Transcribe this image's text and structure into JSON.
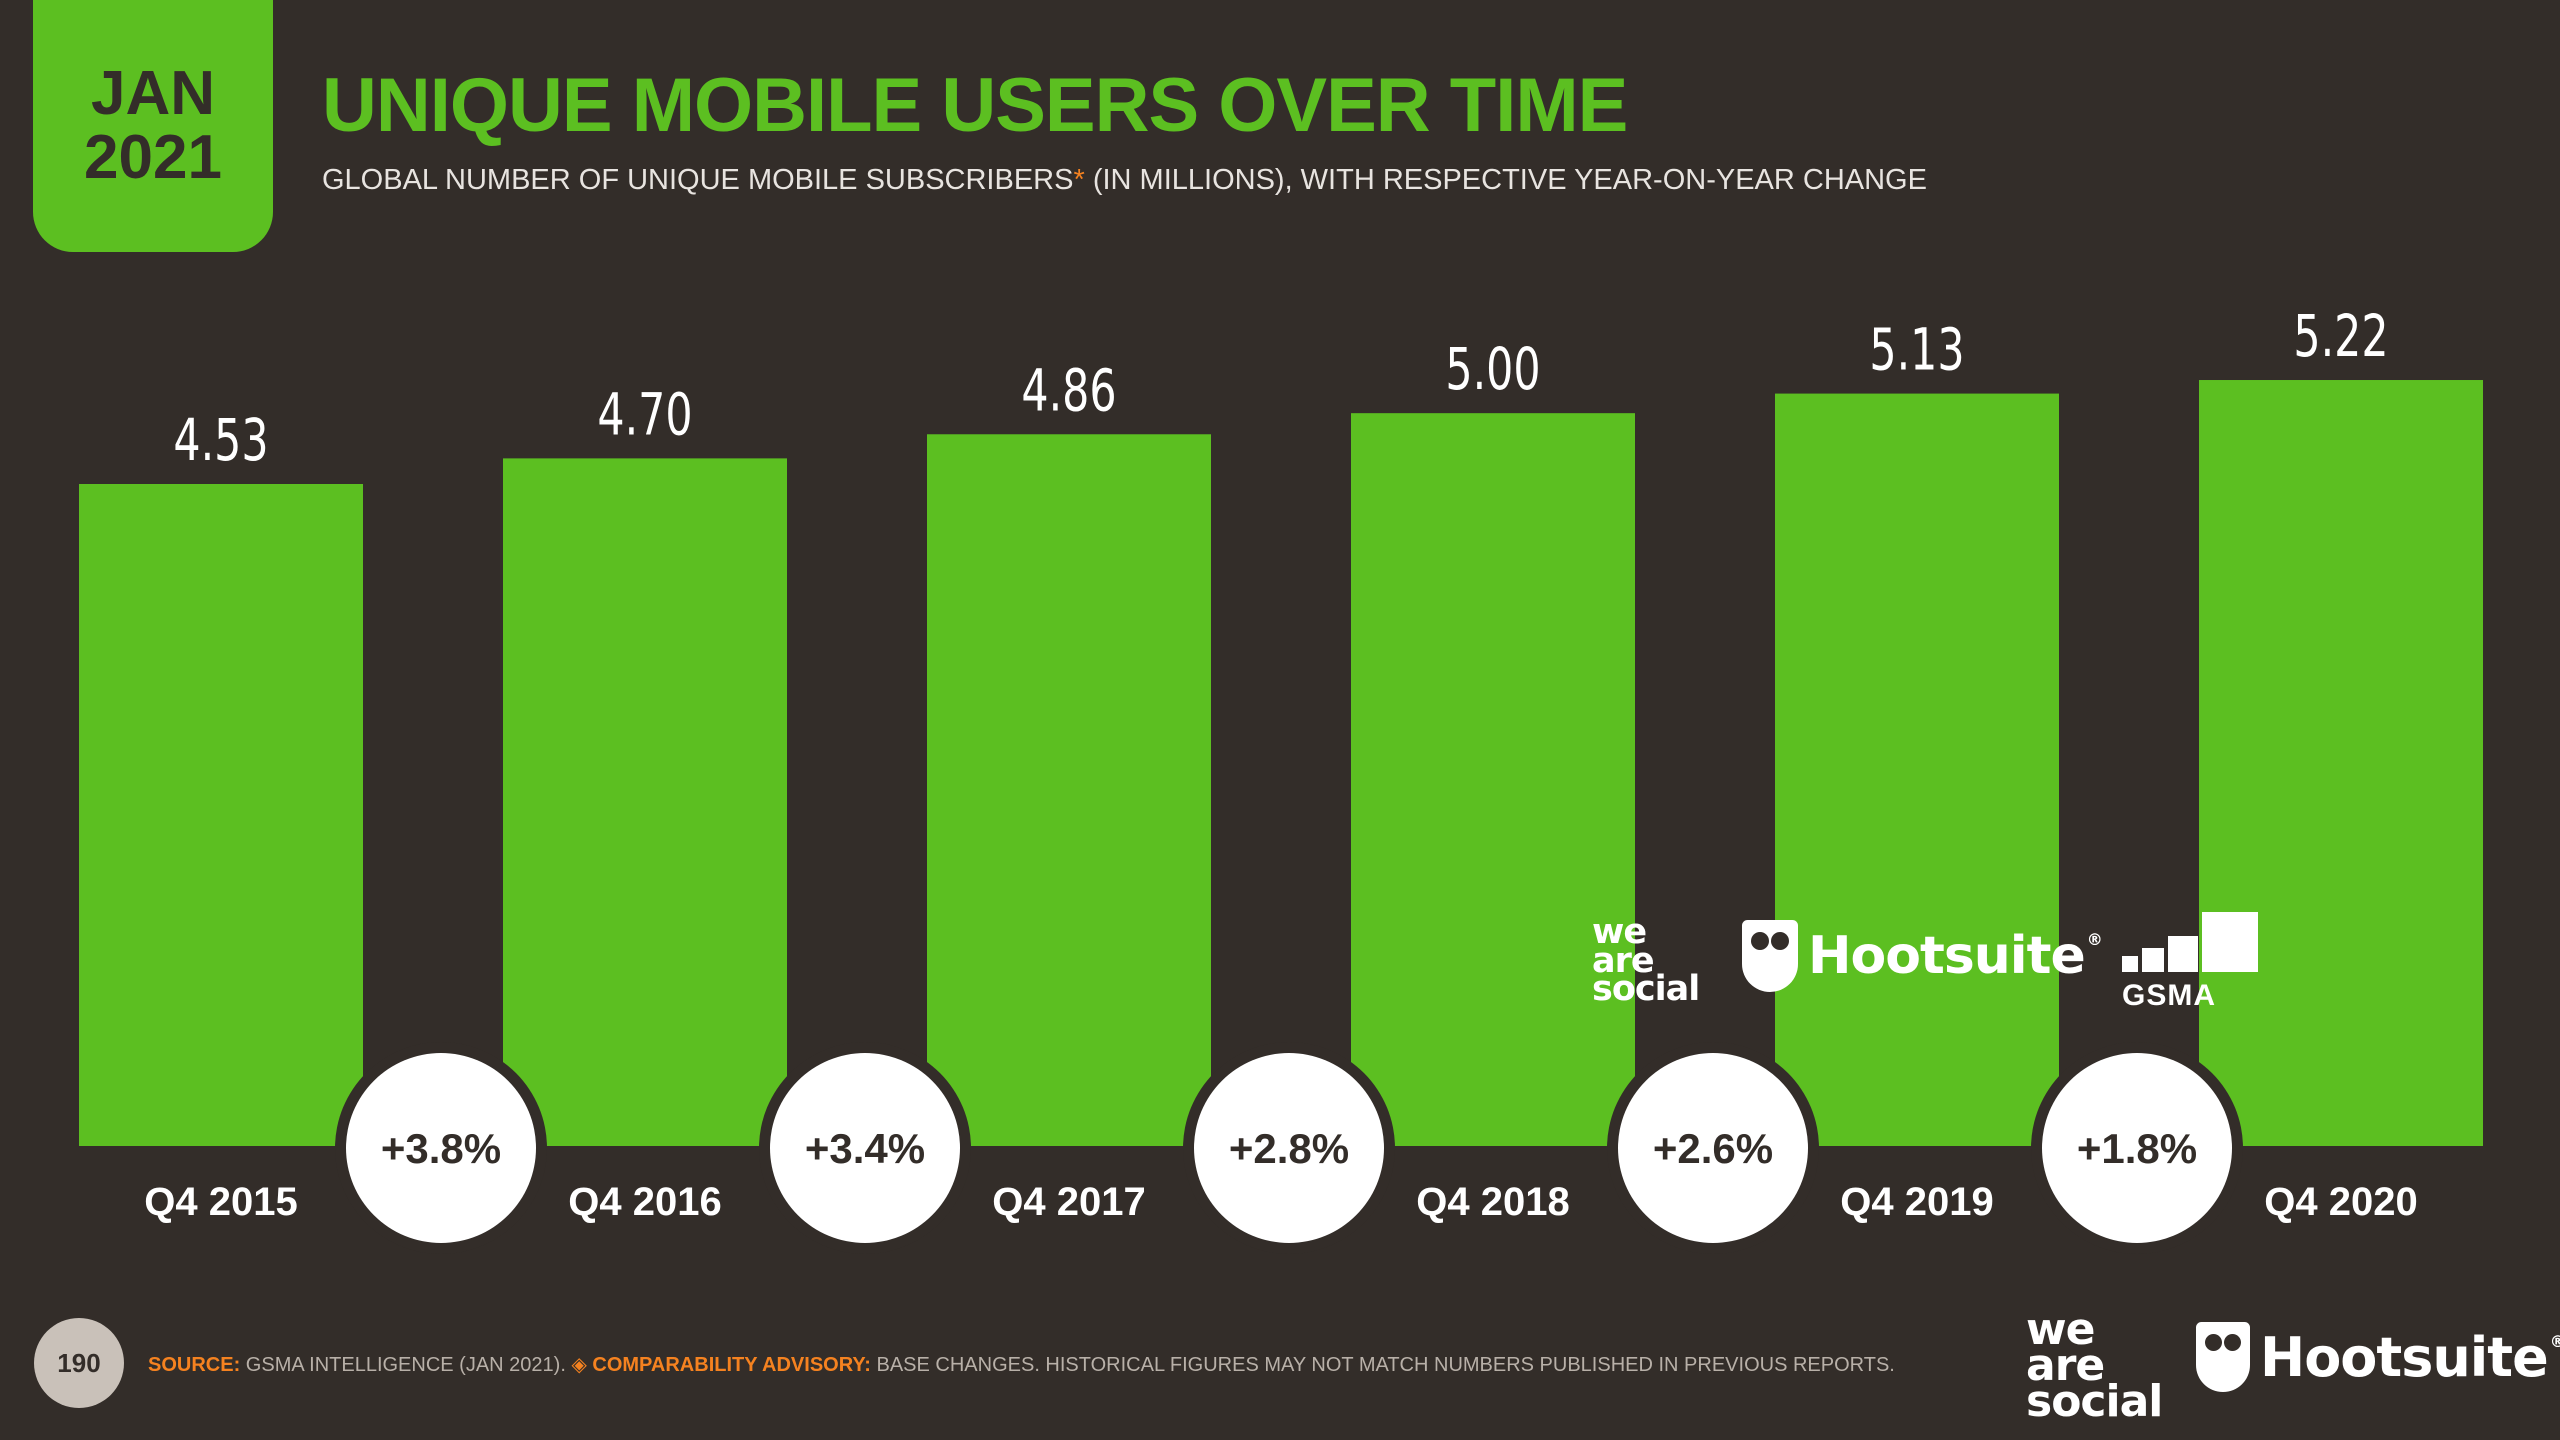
{
  "badge": {
    "month": "JAN",
    "year": "2021"
  },
  "title": "UNIQUE MOBILE USERS OVER TIME",
  "subtitle": {
    "main": "GLOBAL NUMBER OF UNIQUE MOBILE SUBSCRIBERS",
    "asterisk": "*",
    "rest": " (IN MILLIONS), WITH RESPECTIVE YEAR-ON-YEAR CHANGE"
  },
  "colors": {
    "background": "#332d29",
    "bar": "#5cbf21",
    "accent": "#f58220",
    "bubble": "#ffffff"
  },
  "chart_data": {
    "type": "bar",
    "categories": [
      "Q4 2015",
      "Q4 2016",
      "Q4 2017",
      "Q4 2018",
      "Q4 2019",
      "Q4 2020"
    ],
    "values": [
      4.53,
      4.7,
      4.86,
      5.0,
      5.13,
      5.22
    ],
    "value_labels": [
      "4.53",
      "4.70",
      "4.86",
      "5.00",
      "5.13",
      "5.22"
    ],
    "changes": [
      "+3.8%",
      "+3.4%",
      "+2.8%",
      "+2.6%",
      "+1.8%"
    ],
    "grid": false,
    "legend": "none"
  },
  "logos": {
    "we_are_social": [
      "we",
      "are",
      "social"
    ],
    "hootsuite": "Hootsuite",
    "registered": "®",
    "gsma": "GSMA"
  },
  "footer": {
    "page_number": "190",
    "source_label": "SOURCE:",
    "source_text": " GSMA INTELLIGENCE (JAN 2021). ",
    "advisory_icon": "◈",
    "advisory_label": " COMPARABILITY ADVISORY:",
    "advisory_text": " BASE CHANGES. HISTORICAL FIGURES MAY NOT MATCH NUMBERS PUBLISHED IN PREVIOUS REPORTS."
  }
}
